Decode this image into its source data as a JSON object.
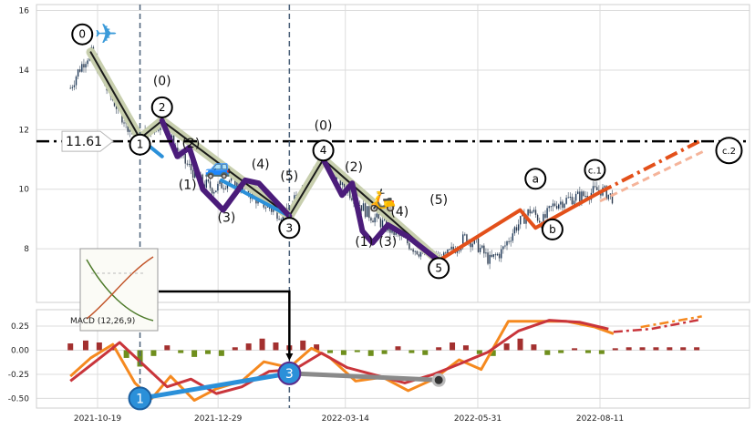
{
  "chart_data": [
    {
      "type": "line",
      "panel": "price",
      "ylim": [
        6.2,
        16.2
      ],
      "yticks": [
        8,
        10,
        12,
        14,
        16
      ],
      "grid": true,
      "price_series": [
        {
          "d": "2021-10-03",
          "v": 13.4
        },
        {
          "d": "2021-10-07",
          "v": 13.9
        },
        {
          "d": "2021-10-11",
          "v": 14.3
        },
        {
          "d": "2021-10-15",
          "v": 14.6
        },
        {
          "d": "2021-10-19",
          "v": 14.1
        },
        {
          "d": "2021-10-24",
          "v": 13.4
        },
        {
          "d": "2021-10-29",
          "v": 12.9
        },
        {
          "d": "2021-11-04",
          "v": 12.3
        },
        {
          "d": "2021-11-10",
          "v": 11.8
        },
        {
          "d": "2021-11-13",
          "v": 11.7
        },
        {
          "d": "2021-11-19",
          "v": 12.0
        },
        {
          "d": "2021-11-26",
          "v": 12.3
        },
        {
          "d": "2021-12-02",
          "v": 11.6
        },
        {
          "d": "2021-12-08",
          "v": 11.0
        },
        {
          "d": "2021-12-14",
          "v": 10.6
        },
        {
          "d": "2021-12-20",
          "v": 10.2
        },
        {
          "d": "2021-12-27",
          "v": 10.0
        },
        {
          "d": "2022-01-04",
          "v": 10.3
        },
        {
          "d": "2022-01-12",
          "v": 10.1
        },
        {
          "d": "2022-01-20",
          "v": 9.7
        },
        {
          "d": "2022-01-30",
          "v": 9.3
        },
        {
          "d": "2022-02-07",
          "v": 9.1
        },
        {
          "d": "2022-02-15",
          "v": 9.9
        },
        {
          "d": "2022-02-23",
          "v": 10.6
        },
        {
          "d": "2022-03-01",
          "v": 11.0
        },
        {
          "d": "2022-03-09",
          "v": 10.4
        },
        {
          "d": "2022-03-18",
          "v": 9.8
        },
        {
          "d": "2022-03-27",
          "v": 9.2
        },
        {
          "d": "2022-04-06",
          "v": 8.8
        },
        {
          "d": "2022-04-15",
          "v": 8.4
        },
        {
          "d": "2022-04-24",
          "v": 8.0
        },
        {
          "d": "2022-05-03",
          "v": 7.7
        },
        {
          "d": "2022-05-10",
          "v": 7.6
        },
        {
          "d": "2022-05-17",
          "v": 8.0
        },
        {
          "d": "2022-05-24",
          "v": 8.4
        },
        {
          "d": "2022-05-31",
          "v": 8.1
        },
        {
          "d": "2022-06-07",
          "v": 7.6
        },
        {
          "d": "2022-06-14",
          "v": 7.9
        },
        {
          "d": "2022-06-22",
          "v": 8.7
        },
        {
          "d": "2022-07-01",
          "v": 9.3
        },
        {
          "d": "2022-07-08",
          "v": 8.9
        },
        {
          "d": "2022-07-15",
          "v": 9.5
        },
        {
          "d": "2022-07-25",
          "v": 9.7
        },
        {
          "d": "2022-08-02",
          "v": 9.8
        },
        {
          "d": "2022-08-11",
          "v": 10.0
        },
        {
          "d": "2022-08-19",
          "v": 9.7
        }
      ],
      "waves": [
        {
          "color": "#c8cfae",
          "width": 10,
          "points": [
            [
              "2021-10-15",
              14.6
            ],
            [
              "2021-11-13",
              11.7
            ],
            [
              "2021-11-26",
              12.3
            ],
            [
              "2022-02-09",
              9.1
            ],
            [
              "2022-03-01",
              11.0
            ],
            [
              "2022-05-08",
              7.6
            ]
          ]
        },
        {
          "color": "#1a1a1a",
          "width": 2,
          "points": [
            [
              "2021-10-15",
              14.6
            ],
            [
              "2021-11-13",
              11.7
            ],
            [
              "2021-11-26",
              12.3
            ],
            [
              "2022-02-09",
              9.1
            ],
            [
              "2022-03-01",
              11.0
            ],
            [
              "2022-05-08",
              7.6
            ]
          ]
        },
        {
          "color": "#2b90d9",
          "width": 4,
          "points": [
            [
              "2021-11-13",
              11.7
            ],
            [
              "2021-11-26",
              11.1
            ]
          ]
        },
        {
          "color": "#2b90d9",
          "width": 4,
          "points": [
            [
              "2021-12-31",
              10.3
            ],
            [
              "2022-02-09",
              9.1
            ]
          ]
        },
        {
          "color": "#4b1c7a",
          "width": 6,
          "points": [
            [
              "2021-11-26",
              12.3
            ],
            [
              "2021-12-05",
              11.1
            ],
            [
              "2021-12-12",
              11.4
            ],
            [
              "2021-12-20",
              10.0
            ],
            [
              "2022-01-01",
              9.3
            ],
            [
              "2022-01-14",
              10.3
            ],
            [
              "2022-01-22",
              10.2
            ],
            [
              "2022-02-09",
              9.1
            ]
          ]
        },
        {
          "color": "#4b1c7a",
          "width": 6,
          "points": [
            [
              "2022-03-01",
              11.0
            ],
            [
              "2022-03-12",
              9.8
            ],
            [
              "2022-03-18",
              10.2
            ],
            [
              "2022-03-24",
              8.6
            ],
            [
              "2022-03-30",
              8.2
            ],
            [
              "2022-04-08",
              8.8
            ],
            [
              "2022-04-20",
              8.4
            ],
            [
              "2022-05-08",
              7.6
            ]
          ]
        },
        {
          "color": "#e3501a",
          "width": 4,
          "points": [
            [
              "2022-05-08",
              7.6
            ],
            [
              "2022-06-25",
              9.3
            ],
            [
              "2022-07-04",
              8.7
            ],
            [
              "2022-08-11",
              9.9
            ]
          ]
        }
      ],
      "projections": [
        {
          "color": "#e3501a",
          "width": 4,
          "dash": "14 5 3 5",
          "points": [
            [
              "2022-08-11",
              9.9
            ],
            [
              "2022-10-10",
              11.65
            ]
          ]
        },
        {
          "color": "#f5b49a",
          "width": 3,
          "dash": "8 5",
          "points": [
            [
              "2022-08-11",
              9.6
            ],
            [
              "2022-10-12",
              11.3
            ]
          ]
        }
      ],
      "hline": {
        "value": 11.61,
        "label": "11.61"
      },
      "vlines": [
        "2021-11-13",
        "2022-02-09"
      ],
      "circle_labels": [
        {
          "text": "0",
          "d": "2021-10-10",
          "v": 15.2
        },
        {
          "text": "1",
          "d": "2021-11-13",
          "v": 11.5
        },
        {
          "text": "2",
          "d": "2021-11-26",
          "v": 12.75
        },
        {
          "text": "3",
          "d": "2022-02-09",
          "v": 8.7
        },
        {
          "text": "4",
          "d": "2022-03-01",
          "v": 11.3
        },
        {
          "text": "5",
          "d": "2022-05-08",
          "v": 7.35
        },
        {
          "text": "a",
          "d": "2022-07-04",
          "v": 10.35
        },
        {
          "text": "b",
          "d": "2022-07-14",
          "v": 8.65
        },
        {
          "text": "c.1",
          "d": "2022-08-08",
          "v": 10.65
        },
        {
          "text": "c.2",
          "d": "2022-10-26",
          "v": 11.3
        }
      ],
      "paren_labels": [
        {
          "text": "(0)",
          "d": "2021-11-26",
          "v": 13.5
        },
        {
          "text": "(2)",
          "d": "2021-12-13",
          "v": 11.4
        },
        {
          "text": "(1)",
          "d": "2021-12-11",
          "v": 10.0
        },
        {
          "text": "(3)",
          "d": "2022-01-03",
          "v": 8.9
        },
        {
          "text": "(4)",
          "d": "2022-01-23",
          "v": 10.7
        },
        {
          "text": "(5)",
          "d": "2022-02-09",
          "v": 10.3
        },
        {
          "text": "(0)",
          "d": "2022-03-01",
          "v": 12.0
        },
        {
          "text": "(2)",
          "d": "2022-03-19",
          "v": 10.6
        },
        {
          "text": "(1)",
          "d": "2022-03-25",
          "v": 8.1
        },
        {
          "text": "(3)",
          "d": "2022-04-08",
          "v": 8.1
        },
        {
          "text": "(4)",
          "d": "2022-04-15",
          "v": 9.1
        },
        {
          "text": "(5)",
          "d": "2022-05-08",
          "v": 9.5
        }
      ],
      "icons": [
        {
          "name": "airplane",
          "glyph": "✈",
          "d": "2021-10-24",
          "v": 14.9
        },
        {
          "name": "car",
          "glyph": "🚙",
          "d": "2021-12-29",
          "v": 10.5
        },
        {
          "name": "scooter",
          "glyph": "🛵",
          "d": "2022-04-05",
          "v": 9.4
        }
      ]
    },
    {
      "type": "bar",
      "panel": "macd",
      "label": "MACD (12,26,9)",
      "ylim": [
        -0.6,
        0.42
      ],
      "yticks": [
        -0.5,
        -0.25,
        0.0,
        0.25
      ],
      "xticks": [
        "2021-10-19",
        "2021-12-29",
        "2022-03-14",
        "2022-05-31",
        "2022-08-11"
      ],
      "histogram": [
        {
          "d": "2021-10-03",
          "v": 0.07
        },
        {
          "d": "2021-10-12",
          "v": 0.1
        },
        {
          "d": "2021-10-20",
          "v": 0.08
        },
        {
          "d": "2021-10-28",
          "v": 0.02
        },
        {
          "d": "2021-11-05",
          "v": -0.08
        },
        {
          "d": "2021-11-13",
          "v": -0.17
        },
        {
          "d": "2021-11-21",
          "v": -0.06
        },
        {
          "d": "2021-11-29",
          "v": 0.05
        },
        {
          "d": "2021-12-07",
          "v": -0.03
        },
        {
          "d": "2021-12-15",
          "v": -0.07
        },
        {
          "d": "2021-12-23",
          "v": -0.04
        },
        {
          "d": "2021-12-31",
          "v": -0.06
        },
        {
          "d": "2022-01-08",
          "v": 0.03
        },
        {
          "d": "2022-01-16",
          "v": 0.07
        },
        {
          "d": "2022-01-24",
          "v": 0.12
        },
        {
          "d": "2022-02-01",
          "v": 0.08
        },
        {
          "d": "2022-02-09",
          "v": 0.05
        },
        {
          "d": "2022-02-17",
          "v": 0.1
        },
        {
          "d": "2022-02-25",
          "v": 0.06
        },
        {
          "d": "2022-03-05",
          "v": -0.03
        },
        {
          "d": "2022-03-13",
          "v": -0.05
        },
        {
          "d": "2022-03-21",
          "v": -0.02
        },
        {
          "d": "2022-03-29",
          "v": -0.06
        },
        {
          "d": "2022-04-06",
          "v": -0.04
        },
        {
          "d": "2022-04-14",
          "v": 0.04
        },
        {
          "d": "2022-04-22",
          "v": -0.03
        },
        {
          "d": "2022-04-30",
          "v": -0.05
        },
        {
          "d": "2022-05-08",
          "v": 0.03
        },
        {
          "d": "2022-05-16",
          "v": 0.08
        },
        {
          "d": "2022-05-24",
          "v": 0.05
        },
        {
          "d": "2022-06-01",
          "v": -0.04
        },
        {
          "d": "2022-06-09",
          "v": -0.06
        },
        {
          "d": "2022-06-17",
          "v": 0.07
        },
        {
          "d": "2022-06-25",
          "v": 0.12
        },
        {
          "d": "2022-07-03",
          "v": 0.06
        },
        {
          "d": "2022-07-11",
          "v": -0.05
        },
        {
          "d": "2022-07-19",
          "v": -0.03
        },
        {
          "d": "2022-07-27",
          "v": 0.02
        },
        {
          "d": "2022-08-04",
          "v": -0.03
        },
        {
          "d": "2022-08-12",
          "v": -0.04
        },
        {
          "d": "2022-08-20",
          "v": 0.02
        },
        {
          "d": "2022-08-28",
          "v": 0.03
        },
        {
          "d": "2022-09-05",
          "v": 0.03
        },
        {
          "d": "2022-09-13",
          "v": 0.03
        },
        {
          "d": "2022-09-21",
          "v": 0.03
        },
        {
          "d": "2022-09-29",
          "v": 0.03
        },
        {
          "d": "2022-10-07",
          "v": 0.03
        }
      ],
      "series": [
        {
          "color": "#f5891f",
          "points": [
            {
              "d": "2021-10-03",
              "v": -0.27
            },
            {
              "d": "2021-10-15",
              "v": -0.08
            },
            {
              "d": "2021-10-28",
              "v": 0.06
            },
            {
              "d": "2021-11-10",
              "v": -0.34
            },
            {
              "d": "2021-11-20",
              "v": -0.5
            },
            {
              "d": "2021-12-01",
              "v": -0.27
            },
            {
              "d": "2021-12-15",
              "v": -0.52
            },
            {
              "d": "2021-12-28",
              "v": -0.4
            },
            {
              "d": "2022-01-12",
              "v": -0.32
            },
            {
              "d": "2022-01-25",
              "v": -0.12
            },
            {
              "d": "2022-02-09",
              "v": -0.18
            },
            {
              "d": "2022-02-22",
              "v": 0.02
            },
            {
              "d": "2022-03-05",
              "v": -0.08
            },
            {
              "d": "2022-03-20",
              "v": -0.32
            },
            {
              "d": "2022-04-05",
              "v": -0.28
            },
            {
              "d": "2022-04-20",
              "v": -0.42
            },
            {
              "d": "2022-05-05",
              "v": -0.3
            },
            {
              "d": "2022-05-20",
              "v": -0.1
            },
            {
              "d": "2022-06-02",
              "v": -0.2
            },
            {
              "d": "2022-06-18",
              "v": 0.3
            },
            {
              "d": "2022-07-05",
              "v": 0.3
            },
            {
              "d": "2022-07-22",
              "v": 0.3
            },
            {
              "d": "2022-08-08",
              "v": 0.24
            },
            {
              "d": "2022-08-19",
              "v": 0.17
            }
          ]
        },
        {
          "color": "#c9353b",
          "points": [
            {
              "d": "2021-10-03",
              "v": -0.32
            },
            {
              "d": "2021-10-19",
              "v": -0.1
            },
            {
              "d": "2021-11-01",
              "v": 0.08
            },
            {
              "d": "2021-11-15",
              "v": -0.15
            },
            {
              "d": "2021-11-29",
              "v": -0.38
            },
            {
              "d": "2021-12-13",
              "v": -0.3
            },
            {
              "d": "2021-12-28",
              "v": -0.45
            },
            {
              "d": "2022-01-12",
              "v": -0.38
            },
            {
              "d": "2022-01-28",
              "v": -0.22
            },
            {
              "d": "2022-02-12",
              "v": -0.2
            },
            {
              "d": "2022-02-28",
              "v": -0.03
            },
            {
              "d": "2022-03-15",
              "v": -0.18
            },
            {
              "d": "2022-04-01",
              "v": -0.26
            },
            {
              "d": "2022-04-18",
              "v": -0.34
            },
            {
              "d": "2022-05-05",
              "v": -0.25
            },
            {
              "d": "2022-05-22",
              "v": -0.13
            },
            {
              "d": "2022-06-06",
              "v": -0.02
            },
            {
              "d": "2022-06-24",
              "v": 0.2
            },
            {
              "d": "2022-07-12",
              "v": 0.31
            },
            {
              "d": "2022-07-30",
              "v": 0.29
            },
            {
              "d": "2022-08-16",
              "v": 0.22
            }
          ]
        }
      ],
      "projections": [
        {
          "color": "#c9353b",
          "dash": "10 4 3 4",
          "points": [
            {
              "d": "2022-08-19",
              "v": 0.19
            },
            {
              "d": "2022-09-10",
              "v": 0.22
            },
            {
              "d": "2022-10-10",
              "v": 0.32
            }
          ]
        },
        {
          "color": "#f5891f",
          "dash": "10 4 3 4",
          "points": [
            {
              "d": "2022-09-04",
              "v": 0.24
            },
            {
              "d": "2022-10-10",
              "v": 0.35
            }
          ]
        }
      ],
      "connectors": [
        {
          "color": "#2b90d9",
          "width": 5,
          "points": [
            {
              "d": "2021-11-13",
              "v": -0.5
            },
            {
              "d": "2022-02-09",
              "v": -0.24
            }
          ]
        },
        {
          "color": "#8a8a8a",
          "width": 5,
          "points": [
            {
              "d": "2022-02-09",
              "v": -0.24
            },
            {
              "d": "2022-05-08",
              "v": -0.31
            }
          ]
        }
      ],
      "markers": [
        {
          "text": "1",
          "d": "2021-11-13",
          "v": -0.5,
          "fill": "#2b90d9",
          "stroke": "#1b5fa0"
        },
        {
          "text": "3",
          "d": "2022-02-09",
          "v": -0.24,
          "fill": "#2b90d9",
          "stroke": "#5a2b8a"
        }
      ],
      "end_dot": {
        "d": "2022-05-08",
        "v": -0.31
      }
    }
  ]
}
